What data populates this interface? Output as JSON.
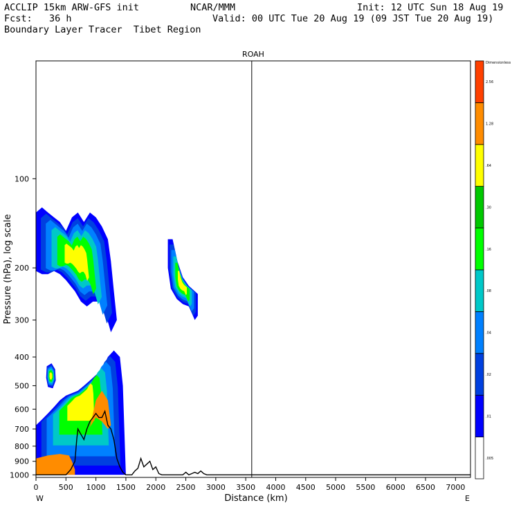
{
  "header": {
    "line1_left": "ACCLIP 15km ARW-GFS init",
    "line1_center": "NCAR/MMM",
    "line1_right": "Init: 12 UTC Sun 18 Aug 19",
    "line2_left": "Fcst:   36 h",
    "line2_right": "Valid: 00 UTC Tue 20 Aug 19 (09 JST Tue 20 Aug 19)",
    "line3_left": "Boundary Layer Tracer  Tibet Region"
  },
  "chart_data": {
    "type": "heatmap",
    "title": "ROAH",
    "xlabel": "Distance (km)",
    "ylabel": "Pressure (hPa), log scale",
    "x_ticks": [
      0,
      500,
      1000,
      1500,
      2000,
      2500,
      3000,
      3500,
      4000,
      4500,
      5000,
      5500,
      6000,
      6500,
      7000
    ],
    "y_ticks": [
      100,
      200,
      300,
      400,
      500,
      600,
      700,
      800,
      900,
      1000
    ],
    "xlim": [
      0,
      7250
    ],
    "ylim": [
      1020,
      40
    ],
    "left_end_label": "W",
    "right_end_label": "E",
    "marker_line_x": 3600,
    "colorbar": {
      "labels": [
        ".005",
        ".01",
        ".02",
        ".04",
        ".08",
        ".16",
        ".30",
        ".64",
        "1.28",
        "2.56",
        "Dimensionless"
      ],
      "colors": [
        "#ffffff",
        "#0000ff",
        "#0040e0",
        "#0080ff",
        "#00c8c8",
        "#00ff00",
        "#00c800",
        "#ffff00",
        "#ff8c00",
        "#ff4000"
      ]
    },
    "terrain": [
      [
        0,
        1000
      ],
      [
        500,
        1000
      ],
      [
        580,
        960
      ],
      [
        650,
        900
      ],
      [
        680,
        760
      ],
      [
        700,
        700
      ],
      [
        750,
        730
      ],
      [
        800,
        760
      ],
      [
        850,
        700
      ],
      [
        900,
        660
      ],
      [
        950,
        640
      ],
      [
        1000,
        620
      ],
      [
        1050,
        640
      ],
      [
        1100,
        640
      ],
      [
        1150,
        610
      ],
      [
        1200,
        680
      ],
      [
        1250,
        700
      ],
      [
        1300,
        760
      ],
      [
        1350,
        880
      ],
      [
        1400,
        940
      ],
      [
        1450,
        980
      ],
      [
        1500,
        1000
      ],
      [
        1600,
        1000
      ],
      [
        1650,
        970
      ],
      [
        1700,
        950
      ],
      [
        1750,
        880
      ],
      [
        1800,
        940
      ],
      [
        1850,
        920
      ],
      [
        1900,
        900
      ],
      [
        1950,
        960
      ],
      [
        2000,
        940
      ],
      [
        2050,
        990
      ],
      [
        2100,
        1000
      ],
      [
        2450,
        1000
      ],
      [
        2500,
        980
      ],
      [
        2550,
        1000
      ],
      [
        2600,
        990
      ],
      [
        2650,
        980
      ],
      [
        2700,
        990
      ],
      [
        2750,
        970
      ],
      [
        2800,
        990
      ],
      [
        2850,
        1000
      ],
      [
        7250,
        1000
      ]
    ],
    "tracer_regions": [
      {
        "name": "upper-west",
        "outline": [
          [
            0,
            130
          ],
          [
            100,
            125
          ],
          [
            200,
            130
          ],
          [
            300,
            135
          ],
          [
            400,
            140
          ],
          [
            500,
            150
          ],
          [
            600,
            135
          ],
          [
            700,
            130
          ],
          [
            800,
            140
          ],
          [
            900,
            130
          ],
          [
            1000,
            135
          ],
          [
            1100,
            145
          ],
          [
            1200,
            160
          ],
          [
            1250,
            190
          ],
          [
            1300,
            240
          ],
          [
            1350,
            300
          ],
          [
            1250,
            330
          ],
          [
            1150,
            280
          ],
          [
            1050,
            260
          ],
          [
            950,
            260
          ],
          [
            850,
            270
          ],
          [
            750,
            260
          ],
          [
            650,
            240
          ],
          [
            500,
            220
          ],
          [
            400,
            210
          ],
          [
            300,
            205
          ],
          [
            200,
            210
          ],
          [
            100,
            210
          ],
          [
            0,
            205
          ]
        ]
      },
      {
        "name": "upper-middle",
        "outline": [
          [
            2200,
            160
          ],
          [
            2280,
            160
          ],
          [
            2360,
            190
          ],
          [
            2450,
            215
          ],
          [
            2550,
            230
          ],
          [
            2700,
            245
          ],
          [
            2700,
            290
          ],
          [
            2650,
            300
          ],
          [
            2550,
            270
          ],
          [
            2450,
            265
          ],
          [
            2350,
            255
          ],
          [
            2250,
            235
          ],
          [
            2200,
            200
          ]
        ]
      },
      {
        "name": "lower-west",
        "outline": [
          [
            0,
            680
          ],
          [
            100,
            650
          ],
          [
            200,
            620
          ],
          [
            300,
            590
          ],
          [
            400,
            560
          ],
          [
            500,
            540
          ],
          [
            600,
            530
          ],
          [
            700,
            520
          ],
          [
            800,
            500
          ],
          [
            900,
            480
          ],
          [
            1000,
            460
          ],
          [
            1100,
            440
          ],
          [
            1200,
            400
          ],
          [
            1300,
            380
          ],
          [
            1400,
            400
          ],
          [
            1450,
            500
          ],
          [
            1500,
            1000
          ],
          [
            0,
            1000
          ]
        ]
      },
      {
        "name": "lower-isolated",
        "outline": [
          [
            180,
            430
          ],
          [
            260,
            420
          ],
          [
            320,
            440
          ],
          [
            330,
            480
          ],
          [
            280,
            510
          ],
          [
            200,
            505
          ],
          [
            170,
            470
          ]
        ]
      }
    ]
  }
}
